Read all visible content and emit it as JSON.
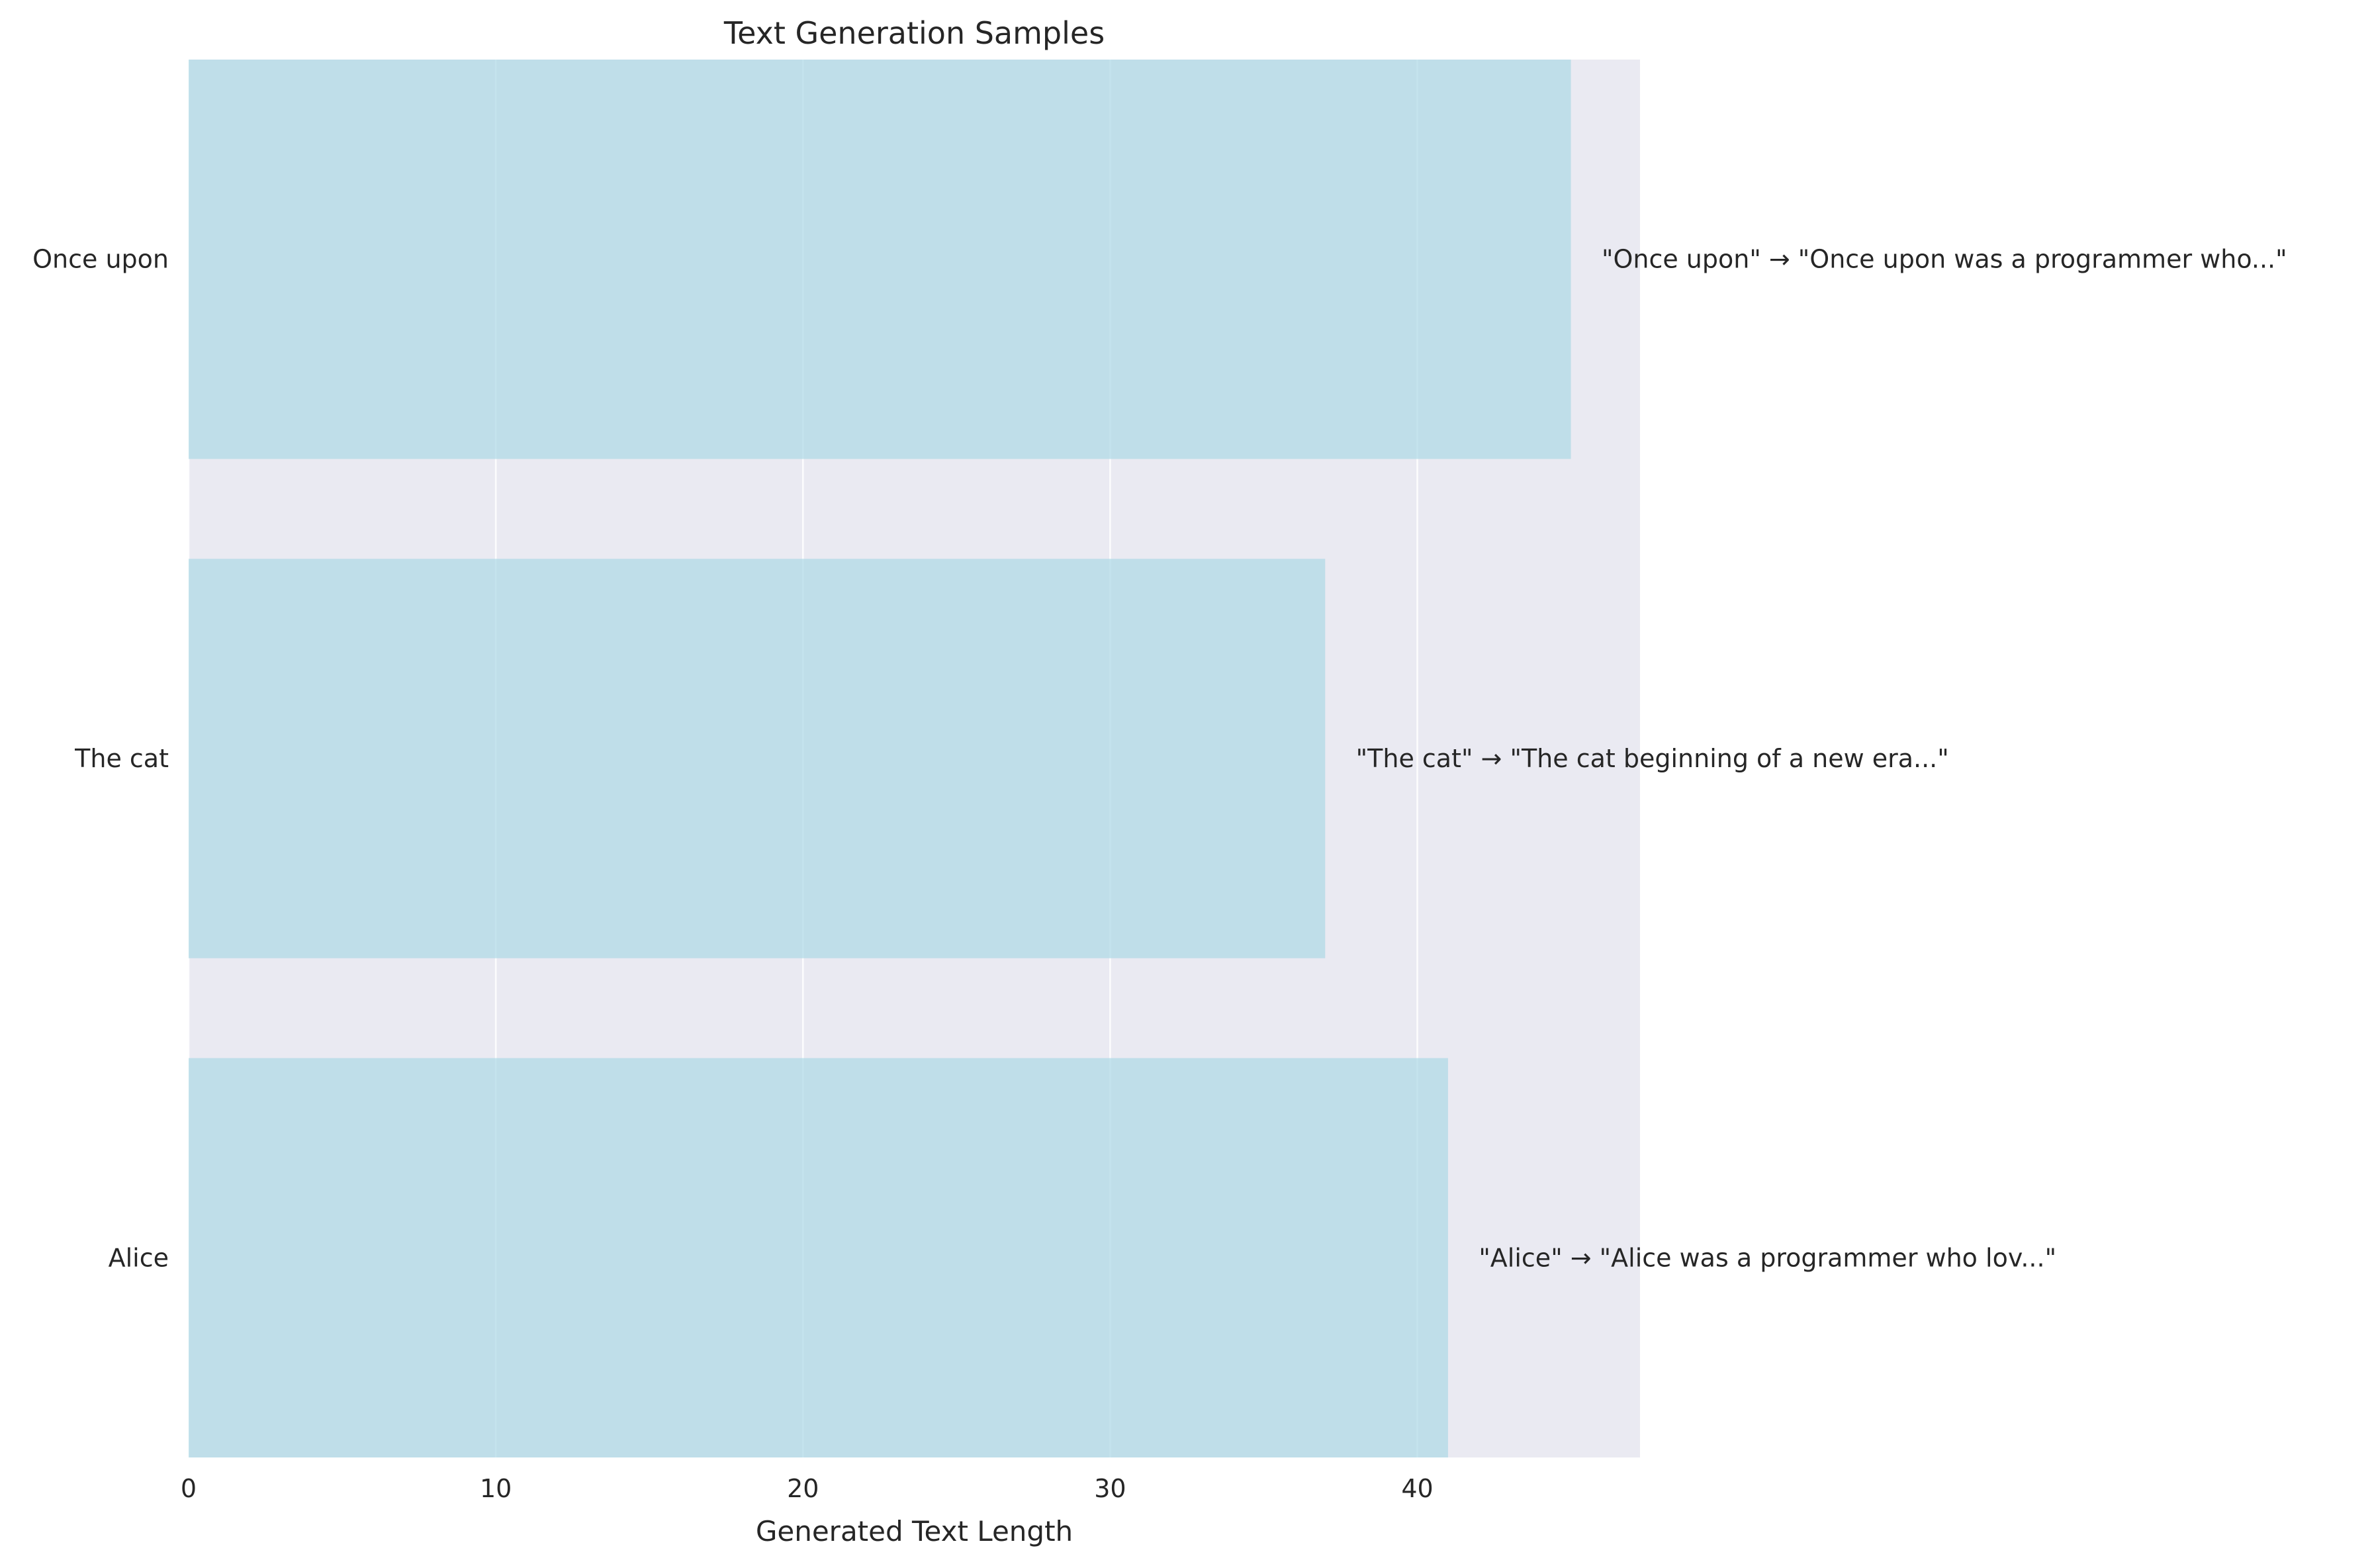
{
  "chart_data": {
    "type": "bar",
    "orientation": "horizontal",
    "title": "Text Generation Samples",
    "xlabel": "Generated Text Length",
    "ylabel": "",
    "categories": [
      "Alice",
      "The cat",
      "Once upon"
    ],
    "values": [
      41,
      37,
      45
    ],
    "annotations": [
      "\"Alice\" → \"Alice was a programmer who lov...\"",
      "\"The cat\" → \"The cat beginning of a new era...\"",
      "\"Once upon\" → \"Once upon was a programmer who...\""
    ],
    "xlim": [
      0,
      47.25
    ],
    "x_ticks": [
      0,
      10,
      20,
      30,
      40
    ],
    "grid": true,
    "legend": "none",
    "colors": {
      "bar": "#add8e6",
      "plot_background": "#eaeaf2",
      "grid": "#ffffff"
    }
  }
}
